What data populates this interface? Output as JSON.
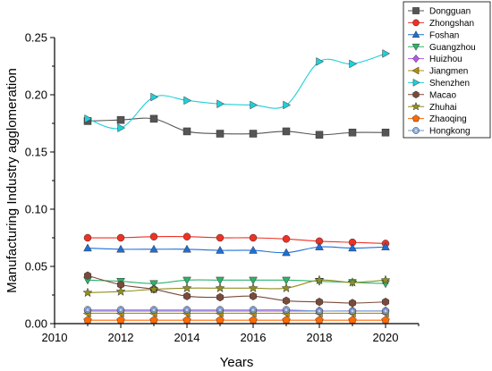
{
  "chart_data": {
    "type": "line",
    "xlabel": "Years",
    "ylabel": "Manufacturing Industry agglomeration",
    "xlim": [
      2010,
      2021
    ],
    "ylim": [
      0,
      0.25
    ],
    "xticks": [
      "2010",
      "2012",
      "2014",
      "2016",
      "2018",
      "2020"
    ],
    "yticks": [
      "0.00",
      "0.05",
      "0.10",
      "0.15",
      "0.20",
      "0.25"
    ],
    "grid": false,
    "legend_position": "top-right",
    "x": [
      2011,
      2012,
      2013,
      2014,
      2015,
      2016,
      2017,
      2018,
      2019,
      2020
    ],
    "series": [
      {
        "name": "Dongguan",
        "marker": "square",
        "color": "#555555",
        "values": [
          0.177,
          0.178,
          0.179,
          0.168,
          0.166,
          0.166,
          0.168,
          0.165,
          0.167,
          0.167
        ]
      },
      {
        "name": "Zhongshan",
        "marker": "circle",
        "color": "#ee3124",
        "values": [
          0.075,
          0.075,
          0.076,
          0.076,
          0.075,
          0.075,
          0.074,
          0.072,
          0.071,
          0.07
        ]
      },
      {
        "name": "Foshan",
        "marker": "triangle-up",
        "color": "#1f6fd6",
        "values": [
          0.066,
          0.065,
          0.065,
          0.065,
          0.064,
          0.064,
          0.062,
          0.067,
          0.066,
          0.067
        ]
      },
      {
        "name": "Guangzhou",
        "marker": "triangle-down",
        "color": "#2db36c",
        "values": [
          0.038,
          0.037,
          0.035,
          0.038,
          0.038,
          0.038,
          0.038,
          0.037,
          0.036,
          0.035
        ]
      },
      {
        "name": "Huizhou",
        "marker": "diamond",
        "color": "#b35ae6",
        "values": [
          0.011,
          0.011,
          0.011,
          0.011,
          0.011,
          0.011,
          0.011,
          0.011,
          0.011,
          0.011
        ]
      },
      {
        "name": "Jiangmen",
        "marker": "triangle-left",
        "color": "#b58f00",
        "values": [
          0.009,
          0.009,
          0.009,
          0.009,
          0.009,
          0.009,
          0.009,
          0.009,
          0.009,
          0.009
        ]
      },
      {
        "name": "Shenzhen",
        "marker": "triangle-right",
        "color": "#1fd0d8",
        "values": [
          0.179,
          0.171,
          0.198,
          0.195,
          0.192,
          0.191,
          0.191,
          0.229,
          0.227,
          0.236
        ]
      },
      {
        "name": "Macao",
        "marker": "hexagon",
        "color": "#7a4a3a",
        "values": [
          0.042,
          0.034,
          0.03,
          0.024,
          0.023,
          0.024,
          0.02,
          0.019,
          0.018,
          0.019
        ]
      },
      {
        "name": "Zhuhai",
        "marker": "star",
        "color": "#8f8f1f",
        "values": [
          0.027,
          0.028,
          0.03,
          0.031,
          0.031,
          0.031,
          0.031,
          0.038,
          0.036,
          0.038
        ]
      },
      {
        "name": "Zhaoqing",
        "marker": "pentagon",
        "color": "#ff6a00",
        "values": [
          0.003,
          0.003,
          0.003,
          0.003,
          0.003,
          0.003,
          0.003,
          0.003,
          0.003,
          0.003
        ]
      },
      {
        "name": "Hongkong",
        "marker": "circle-dotted",
        "color": "#6c9bd8",
        "values": [
          0.012,
          0.012,
          0.012,
          0.012,
          0.012,
          0.012,
          0.012,
          0.011,
          0.011,
          0.011
        ]
      }
    ]
  }
}
